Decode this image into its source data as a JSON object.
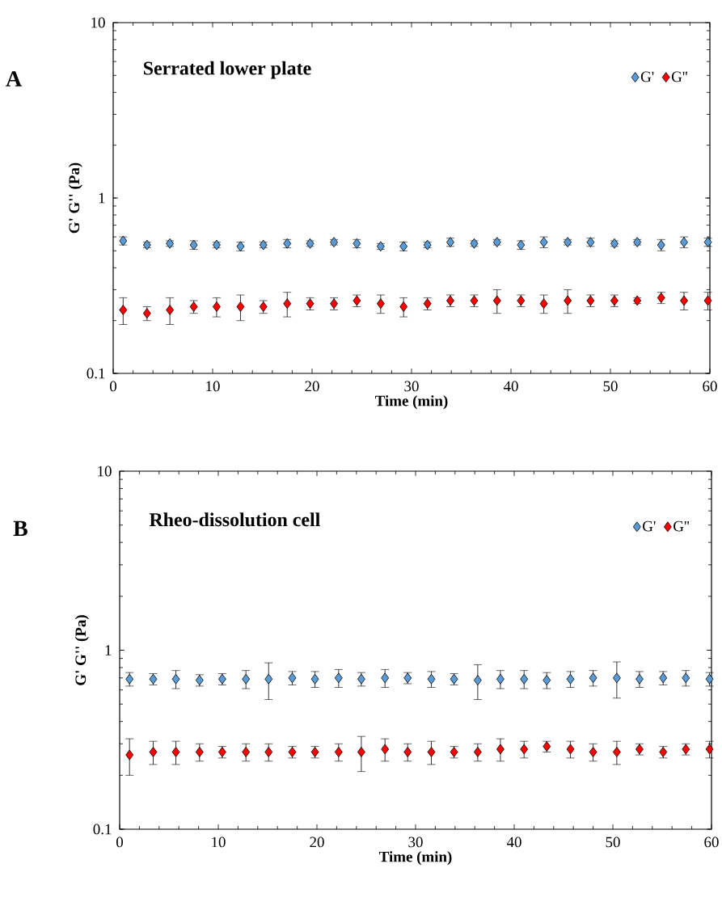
{
  "chart_data": [
    {
      "type": "scatter",
      "title": "Serrated lower plate",
      "xlabel": "Time (min)",
      "ylabel": "G' G'' (Pa)",
      "annotations": [
        "A"
      ],
      "x": [
        1,
        3.4,
        5.7,
        8.1,
        10.4,
        12.8,
        15.1,
        17.5,
        19.8,
        22.2,
        24.5,
        26.9,
        29.2,
        31.6,
        33.9,
        36.3,
        38.6,
        41,
        43.3,
        45.7,
        48,
        50.4,
        52.7,
        55.1,
        57.4,
        59.8
      ],
      "series": [
        {
          "name": "G'",
          "color": "#5b9bd5",
          "values": [
            0.57,
            0.54,
            0.55,
            0.54,
            0.54,
            0.53,
            0.54,
            0.55,
            0.55,
            0.56,
            0.55,
            0.53,
            0.53,
            0.54,
            0.56,
            0.55,
            0.56,
            0.54,
            0.56,
            0.56,
            0.56,
            0.55,
            0.56,
            0.54,
            0.56,
            0.56
          ],
          "errors": [
            0.03,
            0.02,
            0.02,
            0.03,
            0.02,
            0.03,
            0.02,
            0.03,
            0.02,
            0.02,
            0.03,
            0.02,
            0.03,
            0.02,
            0.03,
            0.02,
            0.02,
            0.03,
            0.04,
            0.02,
            0.03,
            0.02,
            0.02,
            0.04,
            0.04,
            0.03
          ]
        },
        {
          "name": "G''",
          "color": "#ff0000",
          "values": [
            0.23,
            0.22,
            0.23,
            0.24,
            0.24,
            0.24,
            0.24,
            0.25,
            0.25,
            0.25,
            0.26,
            0.25,
            0.24,
            0.25,
            0.26,
            0.26,
            0.26,
            0.26,
            0.25,
            0.26,
            0.26,
            0.26,
            0.26,
            0.27,
            0.26,
            0.26
          ],
          "errors": [
            0.04,
            0.02,
            0.04,
            0.02,
            0.03,
            0.04,
            0.02,
            0.04,
            0.02,
            0.02,
            0.02,
            0.03,
            0.03,
            0.02,
            0.02,
            0.02,
            0.04,
            0.02,
            0.03,
            0.04,
            0.02,
            0.02,
            0.01,
            0.02,
            0.03,
            0.03
          ]
        }
      ],
      "xlim": [
        0,
        60
      ],
      "xticks": [
        0,
        10,
        20,
        30,
        40,
        50,
        60
      ],
      "ylim": [
        0.1,
        10
      ],
      "yticks": [
        0.1,
        1,
        10
      ],
      "log": true,
      "marker": "diamond",
      "legend": "top right"
    },
    {
      "type": "scatter",
      "title": "Rheo-dissolution cell",
      "xlabel": "Time (min)",
      "ylabel": "G' G'' (Pa)",
      "annotations": [
        "B"
      ],
      "x": [
        1,
        3.4,
        5.7,
        8.1,
        10.4,
        12.8,
        15.1,
        17.5,
        19.8,
        22.2,
        24.5,
        26.9,
        29.2,
        31.6,
        33.9,
        36.3,
        38.6,
        41,
        43.3,
        45.7,
        48,
        50.4,
        52.7,
        55.1,
        57.4,
        59.8
      ],
      "series": [
        {
          "name": "G'",
          "color": "#5b9bd5",
          "values": [
            0.69,
            0.69,
            0.69,
            0.68,
            0.69,
            0.69,
            0.69,
            0.7,
            0.69,
            0.7,
            0.69,
            0.7,
            0.7,
            0.69,
            0.69,
            0.68,
            0.69,
            0.69,
            0.68,
            0.69,
            0.7,
            0.7,
            0.69,
            0.7,
            0.7,
            0.69
          ],
          "errors": [
            0.06,
            0.05,
            0.08,
            0.05,
            0.05,
            0.08,
            0.16,
            0.06,
            0.07,
            0.08,
            0.06,
            0.08,
            0.05,
            0.07,
            0.05,
            0.15,
            0.08,
            0.08,
            0.07,
            0.07,
            0.07,
            0.16,
            0.07,
            0.06,
            0.07,
            0.06
          ]
        },
        {
          "name": "G''",
          "color": "#ff0000",
          "values": [
            0.26,
            0.27,
            0.27,
            0.27,
            0.27,
            0.27,
            0.27,
            0.27,
            0.27,
            0.27,
            0.27,
            0.28,
            0.27,
            0.27,
            0.27,
            0.27,
            0.28,
            0.28,
            0.29,
            0.28,
            0.27,
            0.27,
            0.28,
            0.27,
            0.28,
            0.28
          ],
          "errors": [
            0.06,
            0.04,
            0.04,
            0.03,
            0.02,
            0.03,
            0.03,
            0.02,
            0.02,
            0.03,
            0.06,
            0.04,
            0.03,
            0.04,
            0.02,
            0.03,
            0.04,
            0.03,
            0.02,
            0.03,
            0.03,
            0.04,
            0.02,
            0.02,
            0.02,
            0.03
          ]
        }
      ],
      "xlim": [
        0,
        60
      ],
      "xticks": [
        0,
        10,
        20,
        30,
        40,
        50,
        60
      ],
      "ylim": [
        0.1,
        10
      ],
      "yticks": [
        0.1,
        1,
        10
      ],
      "log": true,
      "marker": "diamond",
      "legend": "top right"
    }
  ]
}
